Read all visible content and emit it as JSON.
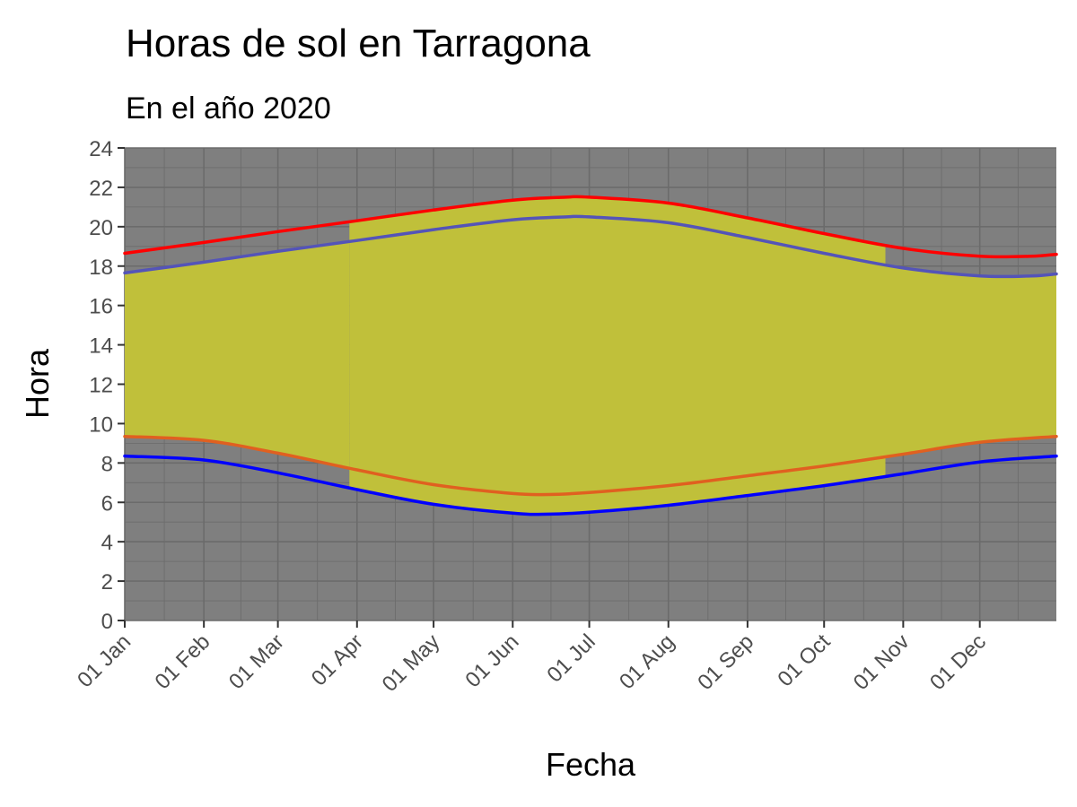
{
  "chart_data": {
    "type": "area",
    "title": "Horas de sol en Tarragona",
    "subtitle": "En el año 2020",
    "xlabel": "Fecha",
    "ylabel": "Hora",
    "x_ticks": [
      "01 Jan",
      "01 Feb",
      "01 Mar",
      "01 Apr",
      "01 May",
      "01 Jun",
      "01 Jul",
      "01 Aug",
      "01 Sep",
      "01 Oct",
      "01 Nov",
      "01 Dec"
    ],
    "x_tick_dates": [
      "2020-01-01",
      "2020-02-01",
      "2020-03-01",
      "2020-04-01",
      "2020-05-01",
      "2020-06-01",
      "2020-07-01",
      "2020-08-01",
      "2020-09-01",
      "2020-10-01",
      "2020-11-01",
      "2020-12-01"
    ],
    "xlim": [
      "2020-01-01",
      "2020-12-31"
    ],
    "y_ticks": [
      "0",
      "2",
      "4",
      "6",
      "8",
      "10",
      "12",
      "14",
      "16",
      "18",
      "20",
      "22",
      "24"
    ],
    "ylim": [
      0,
      24
    ],
    "grid": true,
    "colors": {
      "panel": "#7f7f7f",
      "grid": "#6b6b6b",
      "daylight_fill": "#c0c03a",
      "sunset_local": "#ff0000",
      "sunset_utc": "#5454b8",
      "sunrise_utc": "#0000ff",
      "sunrise_local": "#e06020"
    },
    "dst_period": [
      "2020-03-29",
      "2020-10-25"
    ],
    "series": [
      {
        "key": "sunset_local",
        "x": [
          "2020-01-01",
          "2020-02-01",
          "2020-03-01",
          "2020-04-01",
          "2020-05-01",
          "2020-06-01",
          "2020-06-22",
          "2020-07-01",
          "2020-08-01",
          "2020-09-01",
          "2020-10-01",
          "2020-11-01",
          "2020-12-01",
          "2020-12-21",
          "2020-12-31"
        ],
        "values": [
          18.65,
          19.2,
          19.75,
          20.3,
          20.85,
          21.35,
          21.5,
          21.5,
          21.2,
          20.45,
          19.65,
          18.9,
          18.5,
          18.5,
          18.6
        ]
      },
      {
        "key": "sunset_utc",
        "x": [
          "2020-01-01",
          "2020-02-01",
          "2020-03-01",
          "2020-04-01",
          "2020-05-01",
          "2020-06-01",
          "2020-06-22",
          "2020-07-01",
          "2020-08-01",
          "2020-09-01",
          "2020-10-01",
          "2020-11-01",
          "2020-12-01",
          "2020-12-21",
          "2020-12-31"
        ],
        "values": [
          17.65,
          18.2,
          18.75,
          19.3,
          19.85,
          20.35,
          20.5,
          20.5,
          20.2,
          19.45,
          18.65,
          17.9,
          17.5,
          17.5,
          17.6
        ]
      },
      {
        "key": "sunrise_local",
        "x": [
          "2020-01-01",
          "2020-02-01",
          "2020-03-01",
          "2020-04-01",
          "2020-05-01",
          "2020-06-01",
          "2020-06-15",
          "2020-07-01",
          "2020-08-01",
          "2020-09-01",
          "2020-10-01",
          "2020-11-01",
          "2020-12-01",
          "2020-12-31"
        ],
        "values": [
          9.35,
          9.15,
          8.5,
          7.65,
          6.9,
          6.45,
          6.4,
          6.5,
          6.85,
          7.35,
          7.85,
          8.45,
          9.05,
          9.35
        ]
      },
      {
        "key": "sunrise_utc",
        "x": [
          "2020-01-01",
          "2020-02-01",
          "2020-03-01",
          "2020-04-01",
          "2020-05-01",
          "2020-06-01",
          "2020-06-15",
          "2020-07-01",
          "2020-08-01",
          "2020-09-01",
          "2020-10-01",
          "2020-11-01",
          "2020-12-01",
          "2020-12-31"
        ],
        "values": [
          8.35,
          8.15,
          7.5,
          6.65,
          5.9,
          5.45,
          5.4,
          5.5,
          5.85,
          6.35,
          6.85,
          7.45,
          8.05,
          8.35
        ]
      }
    ]
  }
}
